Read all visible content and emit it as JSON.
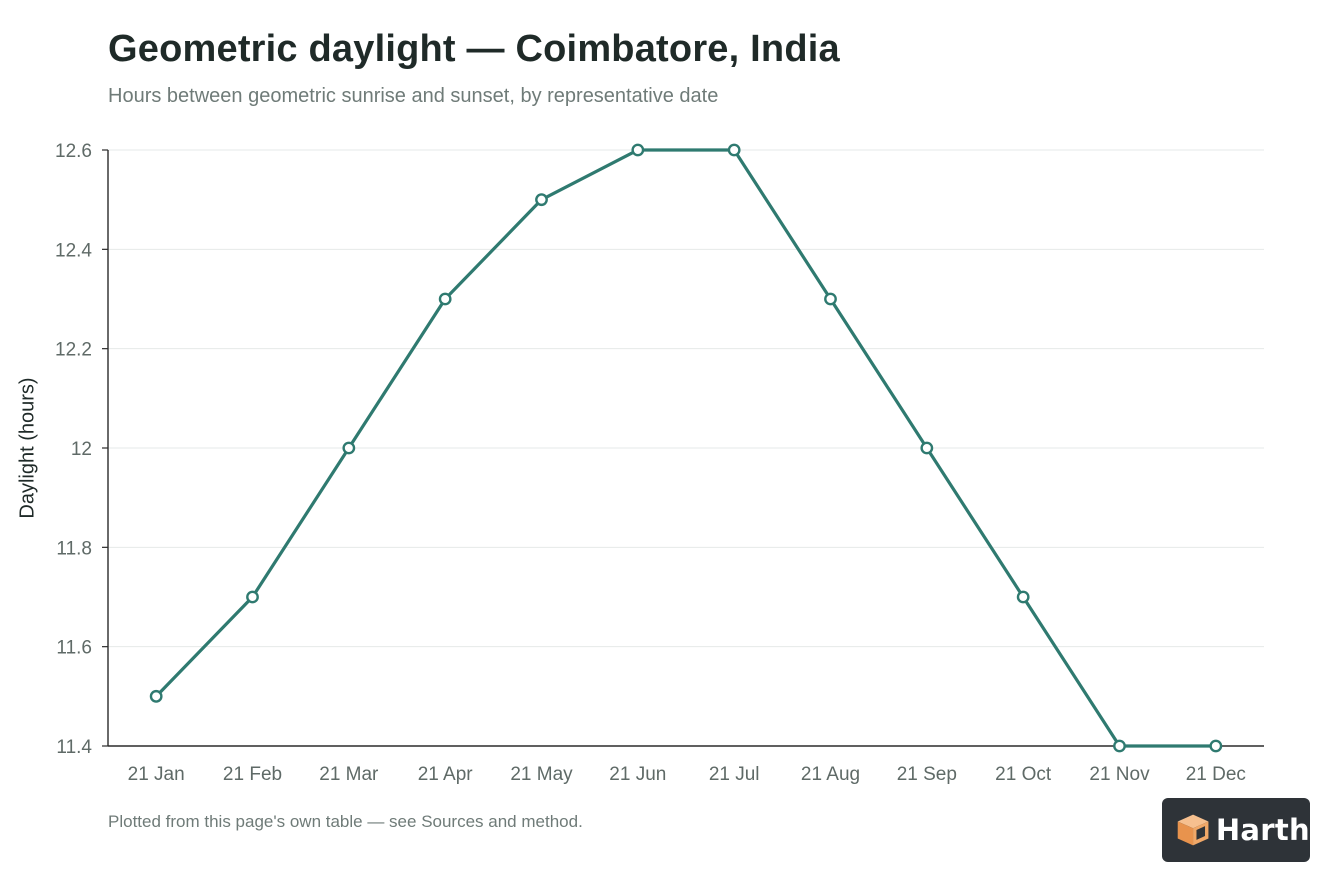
{
  "chart_data": {
    "type": "line",
    "title": "Geometric daylight — Coimbatore, India",
    "subtitle": "Hours between geometric sunrise and sunset, by representative date",
    "xlabel": "",
    "ylabel": "Daylight (hours)",
    "categories": [
      "21 Jan",
      "21 Feb",
      "21 Mar",
      "21 Apr",
      "21 May",
      "21 Jun",
      "21 Jul",
      "21 Aug",
      "21 Sep",
      "21 Oct",
      "21 Nov",
      "21 Dec"
    ],
    "values": [
      11.5,
      11.7,
      12.0,
      12.3,
      12.5,
      12.6,
      12.6,
      12.3,
      12.0,
      11.7,
      11.4,
      11.4
    ],
    "ylim": [
      11.4,
      12.6
    ],
    "yticks": [
      11.4,
      11.6,
      11.8,
      12,
      12.2,
      12.4,
      12.6
    ],
    "ytick_labels": [
      "11.4",
      "11.6",
      "11.8",
      "12",
      "12.2",
      "12.4",
      "12.6"
    ],
    "grid": true,
    "legend": "none",
    "line_color": "#2f7a70"
  },
  "footnote": "Plotted from this page's own table — see Sources and method.",
  "brand": {
    "name": "Harth",
    "icon": "cube-icon"
  }
}
